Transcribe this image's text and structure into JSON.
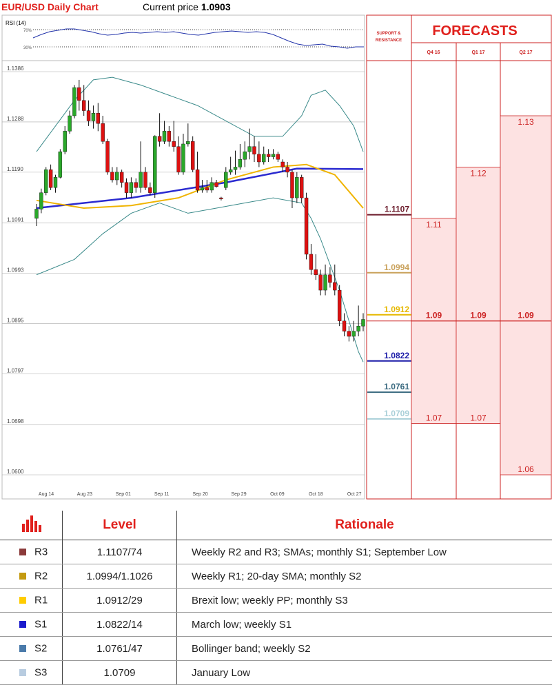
{
  "header": {
    "title": "EUR/USD Daily Chart",
    "price_label": "Current price",
    "price_value": "1.0903"
  },
  "rsi_label": "RSI (14)",
  "rsi_ticks": [
    "70%",
    "30%"
  ],
  "panel": {
    "support_title": "SUPPORT & RESISTANCE",
    "forecast_title": "FORECASTS",
    "columns": [
      "Q4 16",
      "Q1 17",
      "Q2 17"
    ]
  },
  "chart_data": {
    "type": "candlestick",
    "title": "EUR/USD Daily Chart",
    "ylim": [
      1.06,
      1.1386
    ],
    "ytick_labels": [
      "1.1386",
      "1.1288",
      "1.1190",
      "1.1091",
      "1.0993",
      "1.0895",
      "1.0797",
      "1.0698",
      "1.0600"
    ],
    "xtick_labels": [
      "Aug 14",
      "Aug 23",
      "Sep 01",
      "Sep 11",
      "Sep 20",
      "Sep 29",
      "Oct 09",
      "Oct 18",
      "Oct 27"
    ],
    "candles": [
      [
        1.11,
        1.1118,
        1.1085,
        1.1128
      ],
      [
        1.1118,
        1.115,
        1.111,
        1.1158
      ],
      [
        1.115,
        1.1195,
        1.1145,
        1.12
      ],
      [
        1.1195,
        1.116,
        1.1155,
        1.1205
      ],
      [
        1.116,
        1.118,
        1.115,
        1.1185
      ],
      [
        1.118,
        1.123,
        1.1178,
        1.1235
      ],
      [
        1.123,
        1.127,
        1.1225,
        1.128
      ],
      [
        1.127,
        1.13,
        1.1265,
        1.131
      ],
      [
        1.13,
        1.1355,
        1.1295,
        1.136
      ],
      [
        1.1355,
        1.133,
        1.131,
        1.137
      ],
      [
        1.133,
        1.131,
        1.13,
        1.136
      ],
      [
        1.131,
        1.129,
        1.128,
        1.133
      ],
      [
        1.129,
        1.1305,
        1.1275,
        1.132
      ],
      [
        1.1305,
        1.1285,
        1.127,
        1.1325
      ],
      [
        1.1285,
        1.125,
        1.1245,
        1.13
      ],
      [
        1.125,
        1.119,
        1.1185,
        1.1255
      ],
      [
        1.119,
        1.1175,
        1.117,
        1.12
      ],
      [
        1.1175,
        1.119,
        1.1165,
        1.12
      ],
      [
        1.119,
        1.117,
        1.116,
        1.1195
      ],
      [
        1.117,
        1.115,
        1.114,
        1.1178
      ],
      [
        1.115,
        1.117,
        1.114,
        1.118
      ],
      [
        1.117,
        1.116,
        1.115,
        1.1178
      ],
      [
        1.116,
        1.119,
        1.115,
        1.125
      ],
      [
        1.119,
        1.116,
        1.1155,
        1.12
      ],
      [
        1.116,
        1.115,
        1.1145,
        1.117
      ],
      [
        1.115,
        1.126,
        1.114,
        1.1262
      ],
      [
        1.126,
        1.125,
        1.124,
        1.1305
      ],
      [
        1.125,
        1.127,
        1.1245,
        1.129
      ],
      [
        1.127,
        1.125,
        1.124,
        1.128
      ],
      [
        1.125,
        1.124,
        1.123,
        1.129
      ],
      [
        1.124,
        1.119,
        1.1185,
        1.126
      ],
      [
        1.119,
        1.1245,
        1.1185,
        1.1265
      ],
      [
        1.1245,
        1.125,
        1.124,
        1.1285
      ],
      [
        1.125,
        1.1195,
        1.119,
        1.126
      ],
      [
        1.1195,
        1.1155,
        1.115,
        1.123
      ],
      [
        1.1155,
        1.116,
        1.115,
        1.1175
      ],
      [
        1.116,
        1.1155,
        1.115,
        1.1175
      ],
      [
        1.1155,
        1.117,
        1.115,
        1.118
      ],
      [
        1.117,
        1.1162,
        1.116,
        1.1175
      ],
      [
        1.114,
        1.1138,
        1.1135,
        1.1142
      ],
      [
        1.116,
        1.119,
        1.1155,
        1.12
      ],
      [
        1.119,
        1.1195,
        1.1185,
        1.122
      ],
      [
        1.1195,
        1.12,
        1.1185,
        1.1232
      ],
      [
        1.12,
        1.1215,
        1.1195,
        1.1245
      ],
      [
        1.1215,
        1.123,
        1.12,
        1.125
      ],
      [
        1.123,
        1.124,
        1.1215,
        1.1275
      ],
      [
        1.124,
        1.1225,
        1.121,
        1.126
      ],
      [
        1.1225,
        1.121,
        1.12,
        1.125
      ],
      [
        1.121,
        1.1225,
        1.1205,
        1.124
      ],
      [
        1.1225,
        1.122,
        1.121,
        1.1235
      ],
      [
        1.122,
        1.1225,
        1.1215,
        1.1235
      ],
      [
        1.1225,
        1.1215,
        1.121,
        1.123
      ],
      [
        1.121,
        1.12,
        1.119,
        1.1215
      ],
      [
        1.12,
        1.119,
        1.118,
        1.121
      ],
      [
        1.119,
        1.114,
        1.112,
        1.1195
      ],
      [
        1.114,
        1.118,
        1.113,
        1.119
      ],
      [
        1.118,
        1.114,
        1.113,
        1.1185
      ],
      [
        1.114,
        1.103,
        1.102,
        1.115
      ],
      [
        1.103,
        1.1,
        1.099,
        1.105
      ],
      [
        1.1,
        1.099,
        1.098,
        1.103
      ],
      [
        1.099,
        1.096,
        1.095,
        1.1
      ],
      [
        1.096,
        1.099,
        1.095,
        1.101
      ],
      [
        1.099,
        1.0975,
        1.0965,
        1.1005
      ],
      [
        1.0975,
        1.096,
        1.095,
        1.101
      ],
      [
        1.096,
        1.09,
        1.089,
        1.097
      ],
      [
        1.09,
        1.088,
        1.087,
        1.0915
      ],
      [
        1.088,
        1.087,
        1.086,
        1.089
      ],
      [
        1.087,
        1.088,
        1.086,
        1.09
      ],
      [
        1.088,
        1.089,
        1.087,
        1.093
      ],
      [
        1.089,
        1.0903,
        1.088,
        1.0915
      ]
    ],
    "sma_blue": [
      [
        0,
        1.112
      ],
      [
        20,
        1.114
      ],
      [
        40,
        1.117
      ],
      [
        55,
        1.1197
      ],
      [
        69,
        1.1196
      ]
    ],
    "sma_yellow": [
      [
        0,
        1.1135
      ],
      [
        10,
        1.112
      ],
      [
        20,
        1.1125
      ],
      [
        30,
        1.114
      ],
      [
        40,
        1.1175
      ],
      [
        50,
        1.12
      ],
      [
        57,
        1.1205
      ],
      [
        63,
        1.1185
      ],
      [
        69,
        1.112
      ]
    ],
    "bb_upper": [
      [
        0,
        1.123
      ],
      [
        8,
        1.133
      ],
      [
        12,
        1.137
      ],
      [
        16,
        1.1375
      ],
      [
        22,
        1.136
      ],
      [
        28,
        1.134
      ],
      [
        34,
        1.132
      ],
      [
        40,
        1.129
      ],
      [
        46,
        1.126
      ],
      [
        52,
        1.126
      ],
      [
        56,
        1.13
      ],
      [
        58,
        1.134
      ],
      [
        61,
        1.135
      ],
      [
        64,
        1.132
      ],
      [
        67,
        1.128
      ],
      [
        69,
        1.123
      ]
    ],
    "bb_lower": [
      [
        0,
        1.099
      ],
      [
        8,
        1.102
      ],
      [
        14,
        1.107
      ],
      [
        20,
        1.111
      ],
      [
        26,
        1.113
      ],
      [
        32,
        1.111
      ],
      [
        38,
        1.112
      ],
      [
        44,
        1.113
      ],
      [
        50,
        1.114
      ],
      [
        56,
        1.113
      ],
      [
        58,
        1.11
      ],
      [
        60,
        1.106
      ],
      [
        62,
        1.101
      ],
      [
        64,
        1.096
      ],
      [
        66,
        1.09
      ],
      [
        68,
        1.084
      ],
      [
        69,
        1.082
      ]
    ],
    "levels": [
      {
        "name": "R3",
        "value": 1.1107,
        "label": "1.1107",
        "color": "#6b1a2a"
      },
      {
        "name": "R2",
        "value": 1.0994,
        "label": "1.0994",
        "color": "#c9a15a"
      },
      {
        "name": "R1",
        "value": 1.0912,
        "label": "1.0912",
        "color": "#e6b800"
      },
      {
        "name": "S1",
        "value": 1.0822,
        "label": "1.0822",
        "color": "#1a1aa8"
      },
      {
        "name": "S2",
        "value": 1.0761,
        "label": "1.0761",
        "color": "#3a6a80"
      },
      {
        "name": "S3",
        "value": 1.0709,
        "label": "1.0709",
        "color": "#a8cfd8"
      }
    ],
    "forecasts": {
      "Q4 16": {
        "max": 1.11,
        "mid": 1.09,
        "min": 1.07,
        "labels": [
          "1.11",
          "1.09",
          "1.07"
        ]
      },
      "Q1 17": {
        "max": 1.12,
        "mid": 1.09,
        "min": 1.07,
        "labels": [
          "1.12",
          "1.09",
          "1.07"
        ]
      },
      "Q2 17": {
        "max": 1.13,
        "mid": 1.09,
        "min": 1.06,
        "labels": [
          "1.13",
          "1.09",
          "1.06"
        ]
      }
    }
  },
  "table": {
    "headers": {
      "level": "Level",
      "rationale": "Rationale"
    },
    "rows": [
      {
        "tag": "R3",
        "value": "1.1107/74",
        "rationale": "Weekly R2 and R3; SMAs; monthly S1; September Low",
        "color": "#8b3a3a"
      },
      {
        "tag": "R2",
        "value": "1.0994/1.1026",
        "rationale": "Weekly R1; 20-day SMA; monthly S2",
        "color": "#c49a10"
      },
      {
        "tag": "R1",
        "value": "1.0912/29",
        "rationale": "Brexit low; weekly PP; monthly S3",
        "color": "#ffcc00"
      },
      {
        "tag": "S1",
        "value": "1.0822/14",
        "rationale": "March low; weekly S1",
        "color": "#1a1acc"
      },
      {
        "tag": "S2",
        "value": "1.0761/47",
        "rationale": "Bollinger band; weekly S2",
        "color": "#4a7aaa"
      },
      {
        "tag": "S3",
        "value": "1.0709",
        "rationale": "January Low",
        "color": "#b8cce0"
      }
    ]
  }
}
